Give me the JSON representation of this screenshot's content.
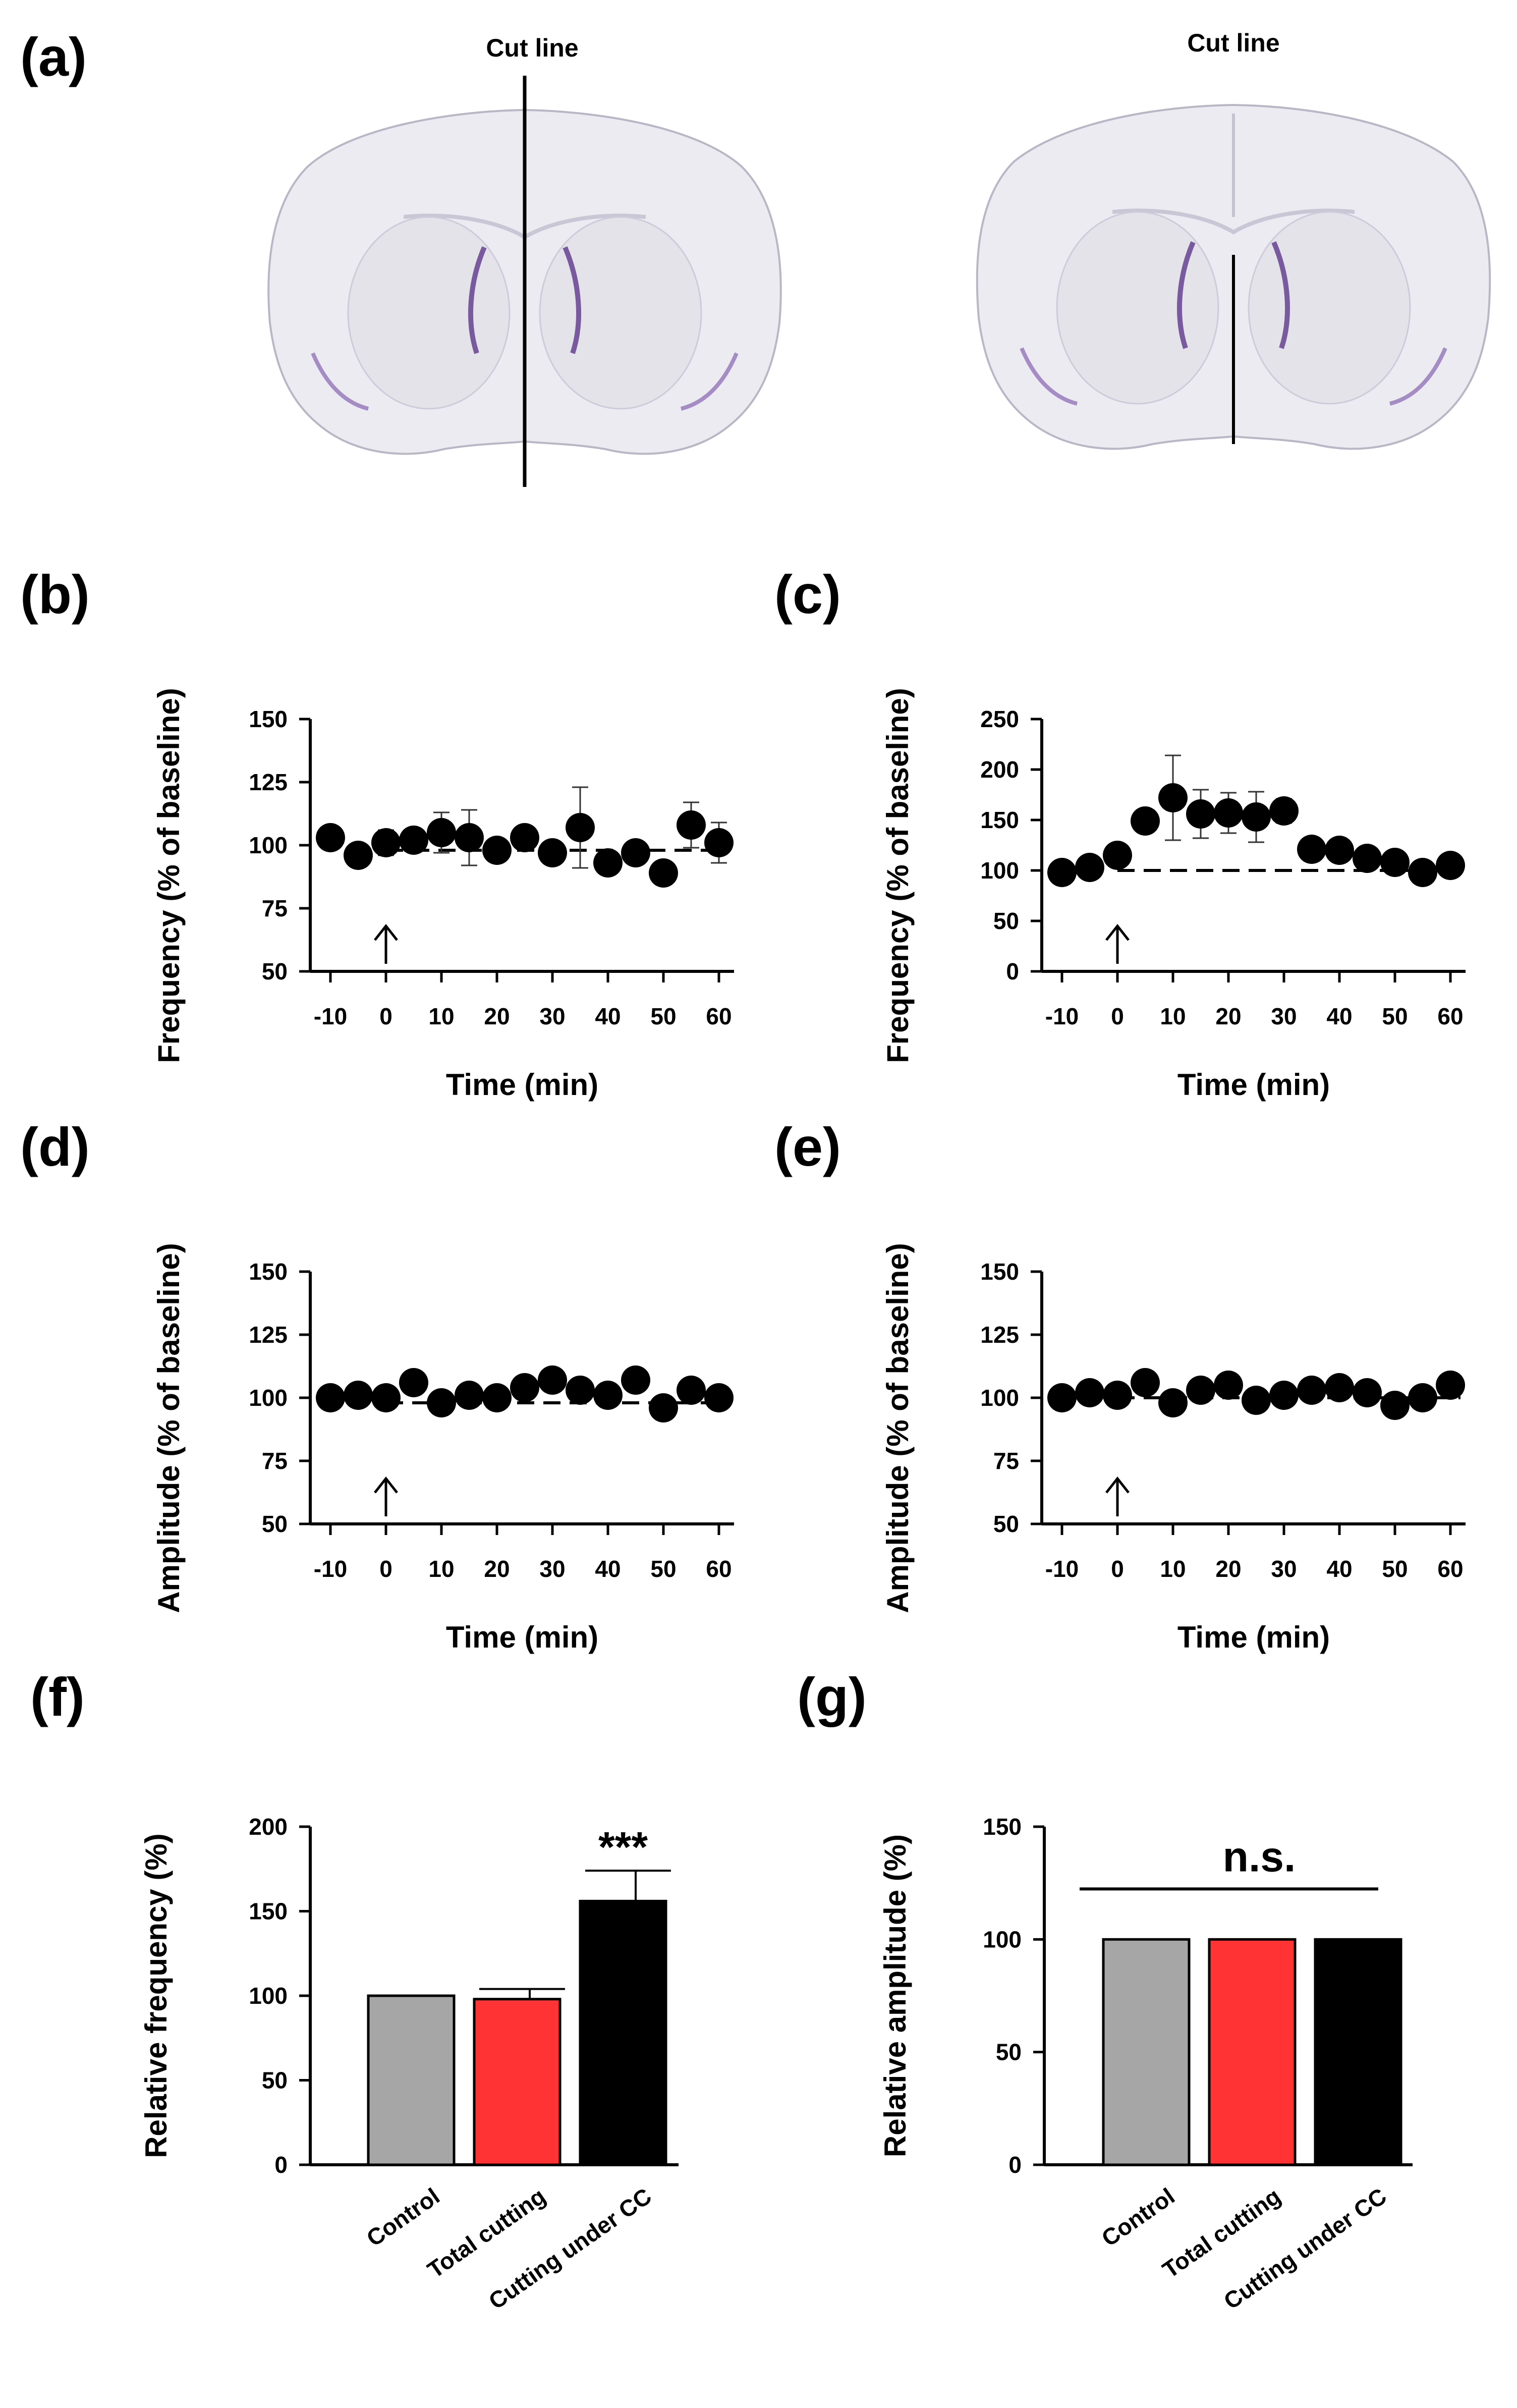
{
  "panel_a": {
    "label": "(a)",
    "left_cut_label": "Cut line",
    "right_cut_label": "Cut line"
  },
  "chart_data": [
    {
      "panel": "(b)",
      "type": "scatter",
      "title": "",
      "xlabel": "Time (min)",
      "ylabel": "Frequency (% of baseline)",
      "xlim": [
        -10,
        60
      ],
      "ylim": [
        50,
        150
      ],
      "xticks": [
        "-10",
        "0",
        "10",
        "20",
        "30",
        "40",
        "50",
        "60"
      ],
      "yticks": [
        "50",
        "75",
        "100",
        "125",
        "150"
      ],
      "baseline": 98,
      "arrow_at": 0,
      "x": [
        -10,
        -5,
        0,
        5,
        10,
        15,
        20,
        25,
        30,
        35,
        40,
        45,
        50,
        55,
        60
      ],
      "y": [
        103,
        96,
        101,
        102,
        105,
        103,
        98,
        103,
        97,
        107,
        93,
        97,
        89,
        108,
        101
      ],
      "err": [
        2,
        2,
        5,
        4,
        8,
        11,
        4,
        3,
        4,
        16,
        4,
        3,
        3,
        9,
        8
      ]
    },
    {
      "panel": "(c)",
      "type": "scatter",
      "title": "",
      "xlabel": "Time (min)",
      "ylabel": "Frequency (% of baseline)",
      "xlim": [
        -10,
        60
      ],
      "ylim": [
        0,
        250
      ],
      "xticks": [
        "-10",
        "0",
        "10",
        "20",
        "30",
        "40",
        "50",
        "60"
      ],
      "yticks": [
        "0",
        "50",
        "100",
        "150",
        "200",
        "250"
      ],
      "baseline": 100,
      "arrow_at": 0,
      "x": [
        -10,
        -5,
        0,
        5,
        10,
        15,
        20,
        25,
        30,
        35,
        40,
        45,
        50,
        55,
        60
      ],
      "y": [
        98,
        103,
        115,
        149,
        172,
        156,
        157,
        153,
        159,
        121,
        120,
        112,
        108,
        98,
        105
      ],
      "err": [
        3,
        5,
        7,
        8,
        42,
        24,
        20,
        25,
        12,
        4,
        6,
        5,
        4,
        3,
        5
      ]
    },
    {
      "panel": "(d)",
      "type": "scatter",
      "title": "",
      "xlabel": "Time (min)",
      "ylabel": "Amplitude (% of baseline)",
      "xlim": [
        -10,
        60
      ],
      "ylim": [
        50,
        150
      ],
      "xticks": [
        "-10",
        "0",
        "10",
        "20",
        "30",
        "40",
        "50",
        "60"
      ],
      "yticks": [
        "50",
        "75",
        "100",
        "125",
        "150"
      ],
      "baseline": 98,
      "arrow_at": 0,
      "x": [
        -10,
        -5,
        0,
        5,
        10,
        15,
        20,
        25,
        30,
        35,
        40,
        45,
        50,
        55,
        60
      ],
      "y": [
        100,
        101,
        100,
        106,
        98,
        101,
        100,
        104,
        107,
        103,
        101,
        107,
        96,
        103,
        100
      ],
      "err": [
        1,
        1,
        1,
        2,
        2,
        1,
        2,
        3,
        3,
        2,
        2,
        3,
        3,
        2,
        2
      ]
    },
    {
      "panel": "(e)",
      "type": "scatter",
      "title": "",
      "xlabel": "Time (min)",
      "ylabel": "Amplitude (% of baseline)",
      "xlim": [
        -10,
        60
      ],
      "ylim": [
        50,
        150
      ],
      "xticks": [
        "-10",
        "0",
        "10",
        "20",
        "30",
        "40",
        "50",
        "60"
      ],
      "yticks": [
        "50",
        "75",
        "100",
        "125",
        "150"
      ],
      "baseline": 100,
      "arrow_at": 0,
      "x": [
        -10,
        -5,
        0,
        5,
        10,
        15,
        20,
        25,
        30,
        35,
        40,
        45,
        50,
        55,
        60
      ],
      "y": [
        100,
        102,
        101,
        106,
        98,
        103,
        105,
        99,
        101,
        103,
        104,
        102,
        97,
        100,
        105
      ],
      "err": [
        1,
        1,
        1,
        2,
        3,
        2,
        3,
        2,
        2,
        2,
        3,
        2,
        2,
        2,
        2
      ]
    },
    {
      "panel": "(f)",
      "type": "bar",
      "title": "",
      "xlabel": "",
      "ylabel": "Relative frequency (%)",
      "ylim": [
        0,
        200
      ],
      "yticks": [
        "0",
        "50",
        "100",
        "150",
        "200"
      ],
      "categories": [
        "Control",
        "Total cutting",
        "Cutting under CC"
      ],
      "values": [
        100,
        98,
        156
      ],
      "err": [
        0,
        6,
        18
      ],
      "colors": [
        "#a6a6a6",
        "#ff3333",
        "#000000"
      ],
      "annotation": "***"
    },
    {
      "panel": "(g)",
      "type": "bar",
      "title": "",
      "xlabel": "",
      "ylabel": "Relative amplitude (%)",
      "ylim": [
        0,
        150
      ],
      "yticks": [
        "0",
        "50",
        "100",
        "150"
      ],
      "categories": [
        "Control",
        "Total cutting",
        "Cutting under CC"
      ],
      "values": [
        100,
        100,
        100
      ],
      "err": [
        0,
        0,
        0
      ],
      "colors": [
        "#a6a6a6",
        "#ff3333",
        "#000000"
      ],
      "annotation": "n.s."
    }
  ]
}
